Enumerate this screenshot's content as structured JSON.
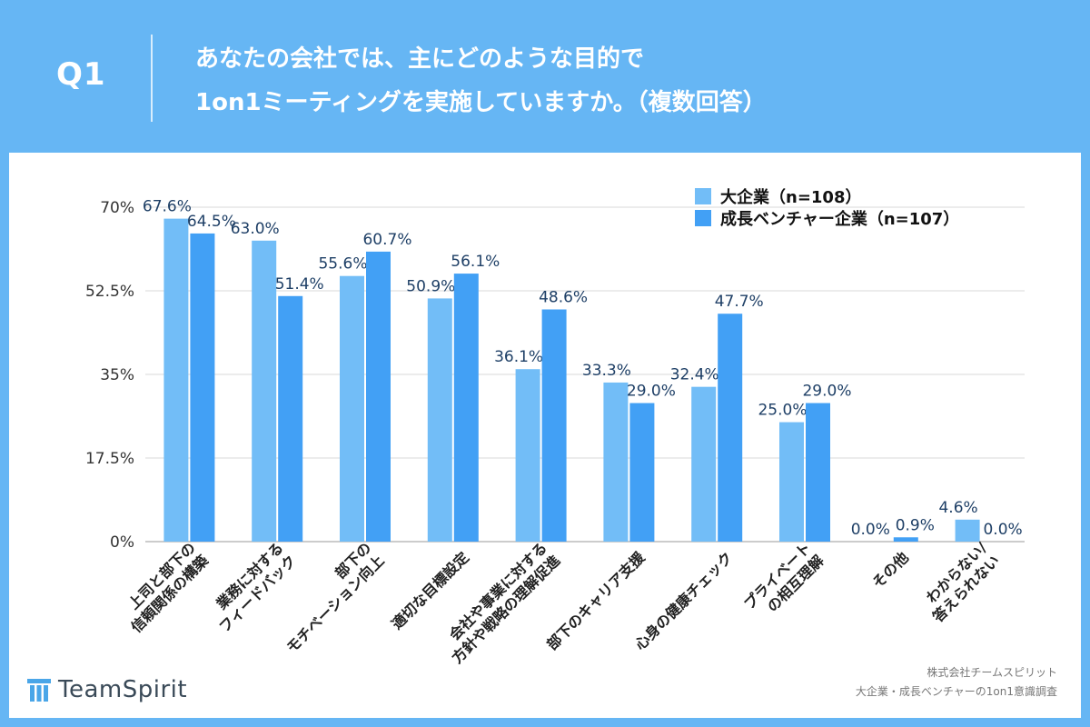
{
  "header": {
    "q_label": "Q1",
    "title_line1": "あなたの会社では、主にどのような目的で",
    "title_line2": "1on1ミーティングを実施していますか。（複数回答）"
  },
  "chart_data": {
    "type": "bar",
    "title": "",
    "xlabel": "",
    "ylabel": "",
    "ylim": [
      0,
      70
    ],
    "yticks": [
      0,
      17.5,
      35,
      52.5,
      70
    ],
    "ytick_labels": [
      "0%",
      "17.5%",
      "35%",
      "52.5%",
      "70%"
    ],
    "grid": true,
    "legend_position": "top-right",
    "categories": [
      [
        "上司と部下の",
        "信頼関係の構築"
      ],
      [
        "業務に対する",
        "フィードバック"
      ],
      [
        "部下の",
        "モチベーション向上"
      ],
      [
        "適切な目標設定"
      ],
      [
        "会社や事業に対する",
        "方針や戦略の理解促進"
      ],
      [
        "部下のキャリア支援"
      ],
      [
        "心身の健康チェック"
      ],
      [
        "プライベート",
        "の相互理解"
      ],
      [
        "その他"
      ],
      [
        "わからない/",
        "答えられない"
      ]
    ],
    "series": [
      {
        "name": "大企業（n=108）",
        "color": "#72bdf7",
        "values": [
          67.6,
          63.0,
          55.6,
          50.9,
          36.1,
          33.3,
          32.4,
          25.0,
          0.0,
          4.6
        ],
        "labels": [
          "67.6%",
          "63.0%",
          "55.6%",
          "50.9%",
          "36.1%",
          "33.3%",
          "32.4%",
          "25.0%",
          "0.0%",
          "4.6%"
        ]
      },
      {
        "name": "成長ベンチャー企業（n=107）",
        "color": "#42a0f5",
        "values": [
          64.5,
          51.4,
          60.7,
          56.1,
          48.6,
          29.0,
          47.7,
          29.0,
          0.9,
          0.0
        ],
        "labels": [
          "64.5%",
          "51.4%",
          "60.7%",
          "56.1%",
          "48.6%",
          "29.0%",
          "47.7%",
          "29.0%",
          "0.9%",
          "0.0%"
        ]
      }
    ]
  },
  "footer": {
    "logo_text": "TeamSpirit",
    "source_line1": "株式会社チームスピリット",
    "source_line2": "大企業・成長ベンチャーの1on1意識調査"
  },
  "colors": {
    "background": "#66b6f4",
    "label_text": "#1e3f66",
    "logo_accent": "#4aa6e8"
  }
}
